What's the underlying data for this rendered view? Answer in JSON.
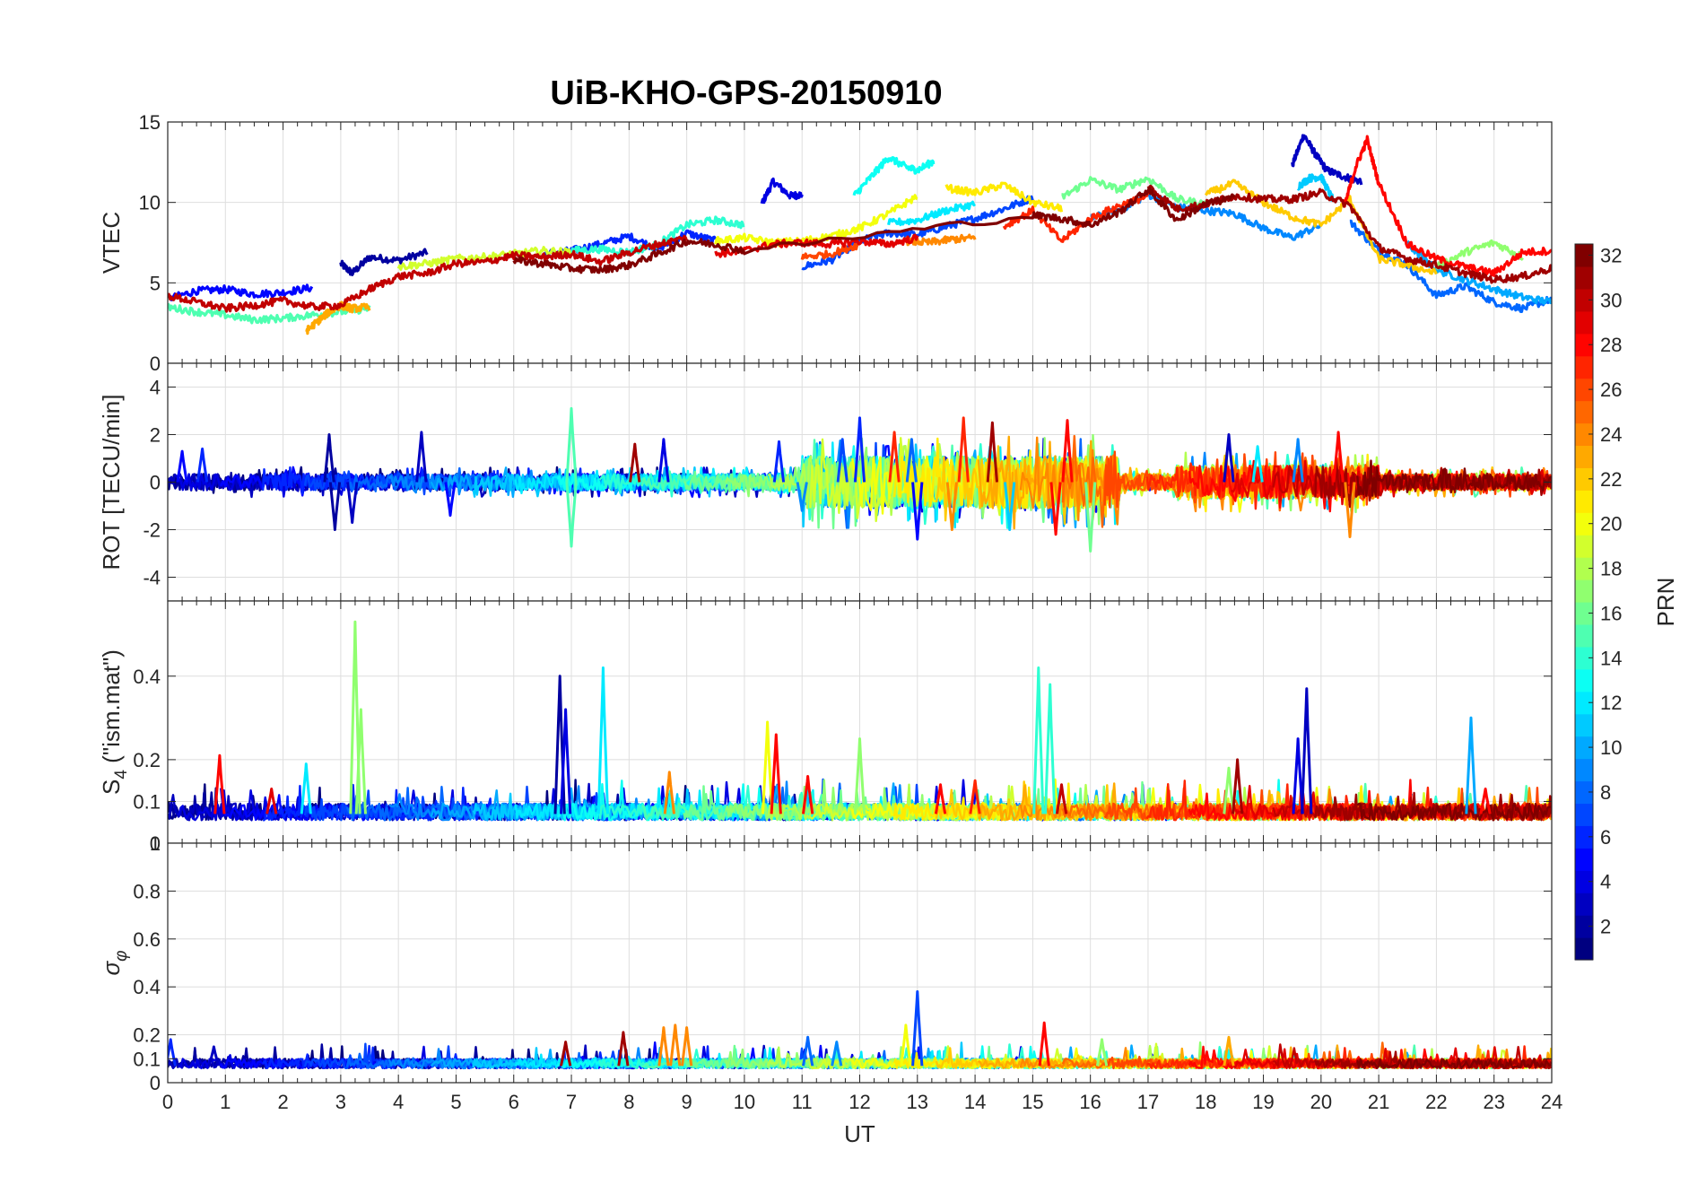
{
  "title": "UiB-KHO-GPS-20150910",
  "chart_data": [
    {
      "type": "line",
      "panel": "vtec",
      "ylabel": "VTEC",
      "xlim": [
        0,
        24
      ],
      "ylim": [
        0,
        15
      ],
      "yticks": [
        0,
        5,
        10,
        15
      ],
      "grid": true,
      "series": [
        {
          "color_prn": 2,
          "x": [
            3.0,
            3.2,
            3.5,
            4.0,
            4.5
          ],
          "y": [
            6.2,
            5.6,
            6.6,
            6.4,
            6.9
          ]
        },
        {
          "color_prn": 4,
          "x": [
            10.3,
            10.5,
            10.8,
            11.0
          ],
          "y": [
            9.9,
            11.3,
            10.4,
            10.5
          ]
        },
        {
          "color_prn": 3,
          "x": [
            19.5,
            19.7,
            19.9,
            20.1,
            20.4,
            20.7
          ],
          "y": [
            12.3,
            14.2,
            13.0,
            12.0,
            11.6,
            11.3
          ]
        },
        {
          "color_prn": 5,
          "x": [
            0,
            0.5,
            1.0,
            1.5,
            2.0,
            2.5
          ],
          "y": [
            4.0,
            4.5,
            4.6,
            4.3,
            4.4,
            4.7
          ]
        },
        {
          "color_prn": 6,
          "x": [
            6.5,
            7.0,
            7.5,
            8.0,
            8.5,
            9.0,
            9.5
          ],
          "y": [
            6.8,
            7.0,
            7.4,
            7.9,
            7.1,
            8.1,
            7.6
          ]
        },
        {
          "color_prn": 7,
          "x": [
            11,
            11.5,
            12,
            12.5,
            13,
            13.5,
            14,
            14.5,
            15
          ],
          "y": [
            6.0,
            6.4,
            7.6,
            8.1,
            8.0,
            8.5,
            9.0,
            9.6,
            10.3
          ]
        },
        {
          "color_prn": 8,
          "x": [
            20.5,
            21,
            21.5,
            22,
            22.5,
            23,
            23.5,
            24
          ],
          "y": [
            8.8,
            7.0,
            6.1,
            4.2,
            4.8,
            3.8,
            3.4,
            4.0
          ]
        },
        {
          "color_prn": 9,
          "x": [
            16,
            16.5,
            17,
            17.5,
            18,
            18.5,
            19,
            19.5,
            20
          ],
          "y": [
            9.0,
            9.5,
            10.5,
            9.7,
            9.5,
            9.3,
            8.4,
            7.8,
            8.6
          ]
        },
        {
          "color_prn": 10,
          "x": [
            21.5,
            22,
            22.5,
            23,
            23.5,
            24
          ],
          "y": [
            7.4,
            5.8,
            5.2,
            4.6,
            4.1,
            3.8
          ]
        },
        {
          "color_prn": 11,
          "x": [
            19.6,
            19.8,
            20,
            20.2
          ],
          "y": [
            11.0,
            11.5,
            11.6,
            10.2
          ]
        },
        {
          "color_prn": 12,
          "x": [
            12.5,
            13,
            13.5,
            14
          ],
          "y": [
            8.7,
            8.9,
            9.5,
            9.9
          ]
        },
        {
          "color_prn": 13,
          "x": [
            11.9,
            12.2,
            12.5,
            12.8,
            13,
            13.3
          ],
          "y": [
            10.4,
            11.6,
            12.8,
            12.2,
            12.0,
            12.6
          ]
        },
        {
          "color_prn": 14,
          "x": [
            7,
            7.5,
            8,
            8.5,
            9,
            9.5,
            10
          ],
          "y": [
            7.0,
            7.1,
            6.9,
            7.4,
            8.6,
            8.9,
            8.6
          ]
        },
        {
          "color_prn": 15,
          "x": [
            0,
            0.5,
            1,
            1.5,
            2,
            2.5,
            3,
            3.5
          ],
          "y": [
            3.5,
            3.2,
            3.0,
            2.7,
            2.8,
            3.0,
            3.2,
            3.4
          ]
        },
        {
          "color_prn": 16,
          "x": [
            15.5,
            16,
            16.5,
            17,
            17.5,
            18
          ],
          "y": [
            10.3,
            11.4,
            10.8,
            11.5,
            10.2,
            9.9
          ]
        },
        {
          "color_prn": 17,
          "x": [
            22,
            22.5,
            23,
            23.5
          ],
          "y": [
            6.0,
            6.9,
            7.5,
            6.6
          ]
        },
        {
          "color_prn": 19,
          "x": [
            4,
            4.5,
            5,
            5.5,
            6,
            6.5,
            7
          ],
          "y": [
            6.0,
            6.2,
            6.5,
            6.6,
            6.8,
            7.0,
            6.9
          ]
        },
        {
          "color_prn": 20,
          "x": [
            9.5,
            10,
            10.5,
            11,
            11.5,
            12,
            12.5,
            13
          ],
          "y": [
            7.6,
            7.8,
            7.5,
            7.6,
            7.9,
            8.4,
            9.3,
            10.4
          ]
        },
        {
          "color_prn": 21,
          "x": [
            13.5,
            14,
            14.5,
            15,
            15.5
          ],
          "y": [
            10.9,
            10.6,
            11.1,
            10.0,
            9.6
          ]
        },
        {
          "color_prn": 22,
          "x": [
            18,
            18.5,
            19,
            19.5,
            20,
            20.5,
            21,
            21.5,
            22
          ],
          "y": [
            10.5,
            11.2,
            10.0,
            9.1,
            8.6,
            10.2,
            6.5,
            6.1,
            5.6
          ]
        },
        {
          "color_prn": 23,
          "x": [
            2.4,
            2.6,
            2.8,
            3.0,
            3.2,
            3.5
          ],
          "y": [
            2.0,
            2.6,
            3.2,
            3.6,
            3.4,
            3.5
          ]
        },
        {
          "color_prn": 24,
          "x": [
            12.8,
            13.2,
            13.6,
            14
          ],
          "y": [
            7.6,
            7.5,
            7.7,
            7.8
          ]
        },
        {
          "color_prn": 26,
          "x": [
            11,
            11.5,
            12
          ],
          "y": [
            6.6,
            6.8,
            7.4
          ]
        },
        {
          "color_prn": 27,
          "x": [
            14.5,
            15,
            15.5,
            16,
            16.5,
            17
          ],
          "y": [
            8.5,
            9.5,
            7.6,
            9.0,
            9.8,
            10.4
          ]
        },
        {
          "color_prn": 28,
          "x": [
            20.4,
            20.6,
            20.8,
            21,
            21.5,
            22,
            22.5,
            23,
            23.5,
            24
          ],
          "y": [
            9.7,
            12.2,
            13.9,
            11.2,
            7.4,
            6.5,
            6.0,
            5.6,
            6.9,
            7.0
          ]
        },
        {
          "color_prn": 29,
          "x": [
            9.5,
            10,
            10.5,
            11,
            11.5,
            12,
            12.5,
            13
          ],
          "y": [
            6.8,
            7.0,
            7.4,
            7.5,
            7.4,
            7.6,
            7.4,
            7.8
          ]
        },
        {
          "color_prn": 30,
          "x": [
            0,
            0.5,
            1,
            1.5,
            2,
            2.5,
            3,
            3.5,
            4,
            4.5,
            5,
            5.5,
            6,
            6.5,
            7,
            7.5,
            8,
            8.5,
            9
          ],
          "y": [
            4.2,
            3.8,
            3.4,
            3.6,
            3.9,
            3.5,
            3.6,
            4.6,
            5.4,
            5.6,
            6.2,
            6.3,
            6.7,
            6.6,
            6.8,
            6.3,
            6.9,
            7.4,
            7.8
          ]
        },
        {
          "color_prn": 31,
          "x": [
            17,
            17.5,
            18,
            18.5,
            19,
            19.5,
            20,
            20.5,
            21,
            21.5,
            22,
            22.5,
            23,
            23.5,
            24
          ],
          "y": [
            11.0,
            9.6,
            9.9,
            10.4,
            10.2,
            10.2,
            10.6,
            9.8,
            7.2,
            6.5,
            6.1,
            5.6,
            5.2,
            5.4,
            5.9
          ]
        },
        {
          "color_prn": 32,
          "x": [
            6,
            6.5,
            7,
            7.5,
            8,
            8.5,
            9,
            9.5,
            10,
            15,
            15.5,
            16,
            16.5,
            17,
            17.5,
            18,
            18.5
          ],
          "y": [
            6.4,
            6.2,
            5.9,
            5.8,
            6.1,
            6.8,
            7.6,
            7.4,
            7.0,
            9.2,
            9.0,
            8.6,
            9.4,
            10.8,
            8.9,
            9.9,
            10.3
          ]
        }
      ]
    },
    {
      "type": "line",
      "panel": "rot",
      "ylabel": "ROT [TECU/min]",
      "xlim": [
        0,
        24
      ],
      "ylim": [
        -5,
        5
      ],
      "yticks": [
        -4,
        -2,
        0,
        2,
        4
      ],
      "grid": true,
      "spikes": [
        {
          "x": 0.25,
          "y": 1.3,
          "color_prn": 5
        },
        {
          "x": 0.6,
          "y": 1.4,
          "color_prn": 6
        },
        {
          "x": 2.8,
          "y": 2.0,
          "color_prn": 2
        },
        {
          "x": 2.9,
          "y": -2.0,
          "color_prn": 2
        },
        {
          "x": 3.2,
          "y": -1.7,
          "color_prn": 3
        },
        {
          "x": 4.4,
          "y": 2.1,
          "color_prn": 3
        },
        {
          "x": 4.9,
          "y": -1.4,
          "color_prn": 5
        },
        {
          "x": 7.0,
          "y": 3.1,
          "color_prn": 15
        },
        {
          "x": 7.0,
          "y": -2.7,
          "color_prn": 15
        },
        {
          "x": 8.1,
          "y": 1.6,
          "color_prn": 31
        },
        {
          "x": 8.6,
          "y": 1.8,
          "color_prn": 4
        },
        {
          "x": 10.6,
          "y": 1.7,
          "color_prn": 6
        },
        {
          "x": 11.0,
          "y": -1.2,
          "color_prn": 9
        },
        {
          "x": 11.7,
          "y": 1.8,
          "color_prn": 7
        },
        {
          "x": 12.0,
          "y": 2.7,
          "color_prn": 6
        },
        {
          "x": 12.6,
          "y": 2.1,
          "color_prn": 27
        },
        {
          "x": 12.9,
          "y": 1.8,
          "color_prn": 8
        },
        {
          "x": 13.0,
          "y": -2.4,
          "color_prn": 5
        },
        {
          "x": 13.6,
          "y": -2.0,
          "color_prn": 24
        },
        {
          "x": 13.8,
          "y": 2.7,
          "color_prn": 27
        },
        {
          "x": 14.3,
          "y": 2.5,
          "color_prn": 31
        },
        {
          "x": 14.6,
          "y": -2.0,
          "color_prn": 11
        },
        {
          "x": 15.4,
          "y": -2.2,
          "color_prn": 28
        },
        {
          "x": 15.6,
          "y": 2.6,
          "color_prn": 28
        },
        {
          "x": 16.0,
          "y": -2.9,
          "color_prn": 16
        },
        {
          "x": 18.4,
          "y": 2.0,
          "color_prn": 3
        },
        {
          "x": 18.9,
          "y": 1.5,
          "color_prn": 12
        },
        {
          "x": 19.6,
          "y": 1.8,
          "color_prn": 9
        },
        {
          "x": 20.3,
          "y": 2.1,
          "color_prn": 28
        },
        {
          "x": 20.5,
          "y": -2.3,
          "color_prn": 24
        }
      ]
    },
    {
      "type": "line",
      "panel": "s4",
      "ylabel": "S_4 (\"ism.mat\")",
      "xlim": [
        0,
        24
      ],
      "ylim": [
        0,
        0.58
      ],
      "yticks": [
        0,
        0.1,
        0.2,
        0.4
      ],
      "grid": true,
      "spikes": [
        {
          "x": 0.9,
          "y": 0.21,
          "color_prn": 28
        },
        {
          "x": 1.8,
          "y": 0.13,
          "color_prn": 29
        },
        {
          "x": 2.4,
          "y": 0.19,
          "color_prn": 12
        },
        {
          "x": 3.25,
          "y": 0.53,
          "color_prn": 17
        },
        {
          "x": 3.35,
          "y": 0.32,
          "color_prn": 17
        },
        {
          "x": 6.8,
          "y": 0.4,
          "color_prn": 2
        },
        {
          "x": 6.9,
          "y": 0.32,
          "color_prn": 4
        },
        {
          "x": 7.55,
          "y": 0.42,
          "color_prn": 12
        },
        {
          "x": 8.7,
          "y": 0.17,
          "color_prn": 24
        },
        {
          "x": 10.4,
          "y": 0.29,
          "color_prn": 20
        },
        {
          "x": 10.55,
          "y": 0.26,
          "color_prn": 28
        },
        {
          "x": 11.1,
          "y": 0.16,
          "color_prn": 28
        },
        {
          "x": 12.0,
          "y": 0.25,
          "color_prn": 17
        },
        {
          "x": 13.4,
          "y": 0.14,
          "color_prn": 28
        },
        {
          "x": 14.0,
          "y": 0.15,
          "color_prn": 27
        },
        {
          "x": 15.1,
          "y": 0.42,
          "color_prn": 14
        },
        {
          "x": 15.3,
          "y": 0.38,
          "color_prn": 14
        },
        {
          "x": 15.5,
          "y": 0.14,
          "color_prn": 30
        },
        {
          "x": 18.4,
          "y": 0.18,
          "color_prn": 17
        },
        {
          "x": 18.55,
          "y": 0.2,
          "color_prn": 31
        },
        {
          "x": 19.6,
          "y": 0.25,
          "color_prn": 4
        },
        {
          "x": 19.75,
          "y": 0.37,
          "color_prn": 3
        },
        {
          "x": 22.6,
          "y": 0.3,
          "color_prn": 10
        },
        {
          "x": 22.85,
          "y": 0.13,
          "color_prn": 28
        }
      ]
    },
    {
      "type": "line",
      "panel": "sigma_phi",
      "ylabel": "σ_φ",
      "xlim": [
        0,
        24
      ],
      "xlabel": "UT",
      "xticks": [
        0,
        1,
        2,
        3,
        4,
        5,
        6,
        7,
        8,
        9,
        10,
        11,
        12,
        13,
        14,
        15,
        16,
        17,
        18,
        19,
        20,
        21,
        22,
        23,
        24
      ],
      "ylim": [
        0,
        1
      ],
      "yticks": [
        0,
        0.1,
        0.2,
        0.4,
        0.6,
        0.8,
        1
      ],
      "grid": true,
      "spikes": [
        {
          "x": 0.05,
          "y": 0.18,
          "color_prn": 6
        },
        {
          "x": 0.8,
          "y": 0.15,
          "color_prn": 3
        },
        {
          "x": 6.9,
          "y": 0.17,
          "color_prn": 31
        },
        {
          "x": 7.9,
          "y": 0.21,
          "color_prn": 31
        },
        {
          "x": 8.6,
          "y": 0.23,
          "color_prn": 24
        },
        {
          "x": 8.8,
          "y": 0.24,
          "color_prn": 24
        },
        {
          "x": 9.0,
          "y": 0.23,
          "color_prn": 24
        },
        {
          "x": 11.1,
          "y": 0.19,
          "color_prn": 8
        },
        {
          "x": 11.6,
          "y": 0.17,
          "color_prn": 9
        },
        {
          "x": 12.8,
          "y": 0.24,
          "color_prn": 20
        },
        {
          "x": 13.0,
          "y": 0.38,
          "color_prn": 7
        },
        {
          "x": 15.2,
          "y": 0.25,
          "color_prn": 28
        },
        {
          "x": 16.2,
          "y": 0.18,
          "color_prn": 17
        },
        {
          "x": 18.4,
          "y": 0.19,
          "color_prn": 23
        }
      ]
    }
  ],
  "colorbar": {
    "label": "PRN",
    "min": 1,
    "max": 32,
    "ticks": [
      2,
      4,
      6,
      8,
      10,
      12,
      14,
      16,
      18,
      20,
      22,
      24,
      26,
      28,
      30,
      32
    ],
    "colormap": "jet"
  }
}
